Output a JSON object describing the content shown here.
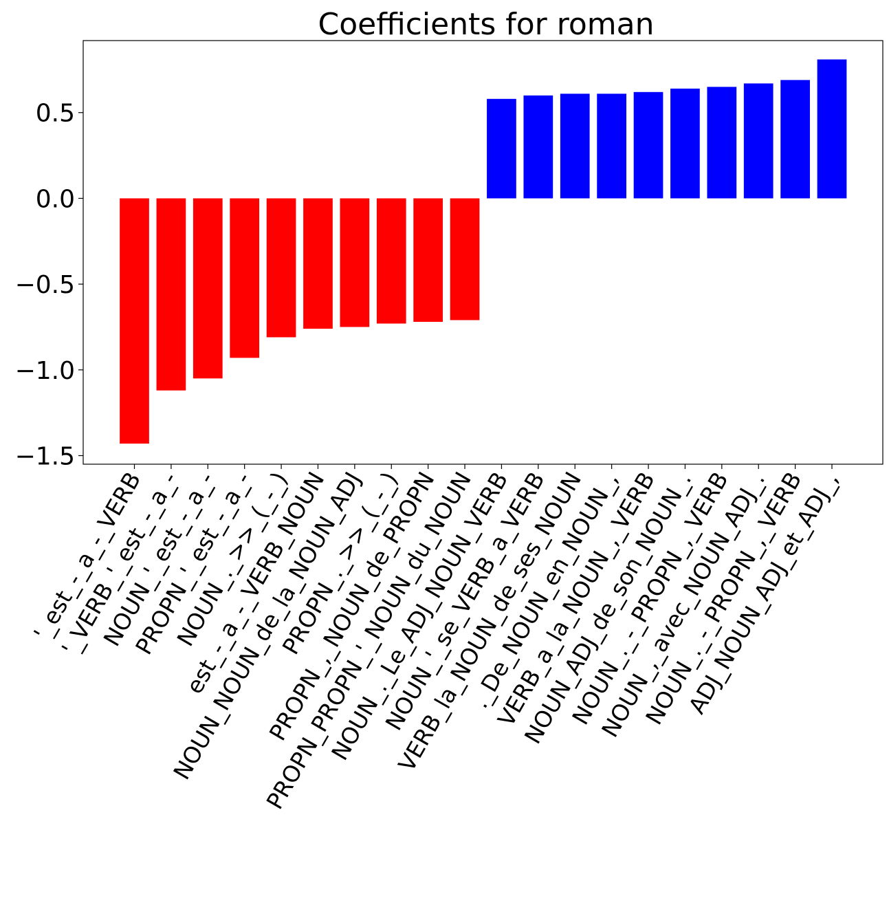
{
  "chart_data": {
    "type": "bar",
    "title": "Coefficients for roman",
    "xlabel": "",
    "ylabel": "",
    "ylim": [
      -1.55,
      0.92
    ],
    "yticks": [
      0.5,
      0.0,
      -0.5,
      -1.0,
      -1.5
    ],
    "ytick_labels": [
      "0.5",
      "0.0",
      "−0.5",
      "−1.0",
      "−1.5"
    ],
    "grid": false,
    "negative_color": "#ff0000",
    "positive_color": "#0000ff",
    "categories": [
      "'_est_-_a_-_VERB",
      "'_VERB_'_est_-_a_-",
      "NOUN_'_est_-_a_-",
      "PROPN_'_est_-_a_-",
      "NOUN_._>>_(_-_)",
      "est_-_a_-_VERB_NOUN",
      "NOUN_NOUN_de_la_NOUN_ADJ",
      "PROPN_._>>_(_-_)",
      "PROPN_,_NOUN_de_PROPN",
      "PROPN_PROPN_'_NOUN_du_NOUN",
      "NOUN_._Le_ADJ_NOUN_VERB",
      "NOUN_'_se_VERB_a_VERB",
      "VERB_la_NOUN_de_ses_NOUN",
      "._De_NOUN_en_NOUN_,",
      "VERB_a_la_NOUN_,_VERB",
      "NOUN_ADJ_de_son_NOUN_.",
      "NOUN_._-_PROPN_,_VERB",
      "NOUN_,_avec_NOUN_ADJ_.",
      "NOUN_._-_PROPN_,_VERB",
      "ADJ_NOUN_ADJ_et_ADJ_,"
    ],
    "values": [
      -1.43,
      -1.12,
      -1.05,
      -0.93,
      -0.81,
      -0.76,
      -0.75,
      -0.73,
      -0.72,
      -0.71,
      0.58,
      0.6,
      0.61,
      0.61,
      0.62,
      0.64,
      0.65,
      0.67,
      0.69,
      0.81
    ]
  }
}
